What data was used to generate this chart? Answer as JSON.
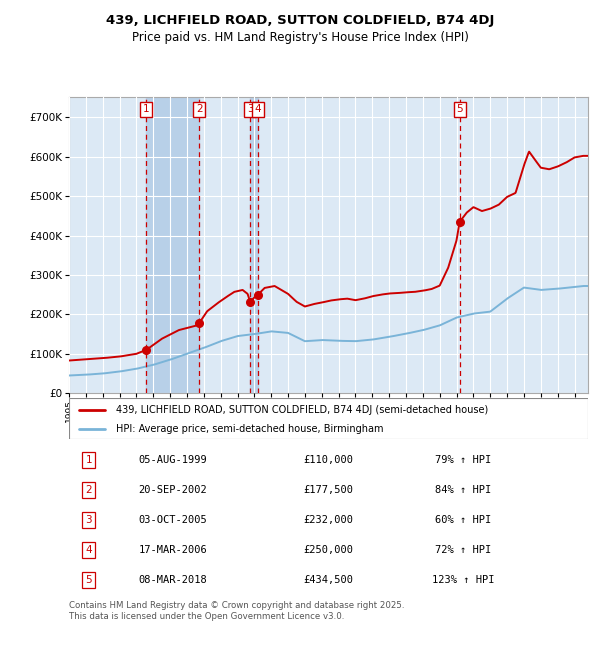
{
  "title_line1": "439, LICHFIELD ROAD, SUTTON COLDFIELD, B74 4DJ",
  "title_line2": "Price paid vs. HM Land Registry's House Price Index (HPI)",
  "legend_line1": "439, LICHFIELD ROAD, SUTTON COLDFIELD, B74 4DJ (semi-detached house)",
  "legend_line2": "HPI: Average price, semi-detached house, Birmingham",
  "footnote": "Contains HM Land Registry data © Crown copyright and database right 2025.\nThis data is licensed under the Open Government Licence v3.0.",
  "sale_dates_num": [
    1999.59,
    2002.72,
    2005.75,
    2006.21,
    2018.18
  ],
  "sale_prices": [
    110000,
    177500,
    232000,
    250000,
    434500
  ],
  "sale_labels": [
    "1",
    "2",
    "3",
    "4",
    "5"
  ],
  "sale_hpi_pct": [
    "79% ↑ HPI",
    "84% ↑ HPI",
    "60% ↑ HPI",
    "72% ↑ HPI",
    "123% ↑ HPI"
  ],
  "sale_dates_str": [
    "05-AUG-1999",
    "20-SEP-2002",
    "03-OCT-2005",
    "17-MAR-2006",
    "08-MAR-2018"
  ],
  "sale_prices_str": [
    "£110,000",
    "£177,500",
    "£232,000",
    "£250,000",
    "£434,500"
  ],
  "hpi_color": "#7ab4d8",
  "price_color": "#cc0000",
  "background_color": "#ffffff",
  "plot_bg_color": "#dce9f5",
  "grid_color": "#ffffff",
  "sale_band_color": "#b8d0e8",
  "ylim": [
    0,
    750000
  ],
  "yticks": [
    0,
    100000,
    200000,
    300000,
    400000,
    500000,
    600000,
    700000
  ],
  "ytick_labels": [
    "£0",
    "£100K",
    "£200K",
    "£300K",
    "£400K",
    "£500K",
    "£600K",
    "£700K"
  ],
  "xmin": 1995.0,
  "xmax": 2025.8
}
